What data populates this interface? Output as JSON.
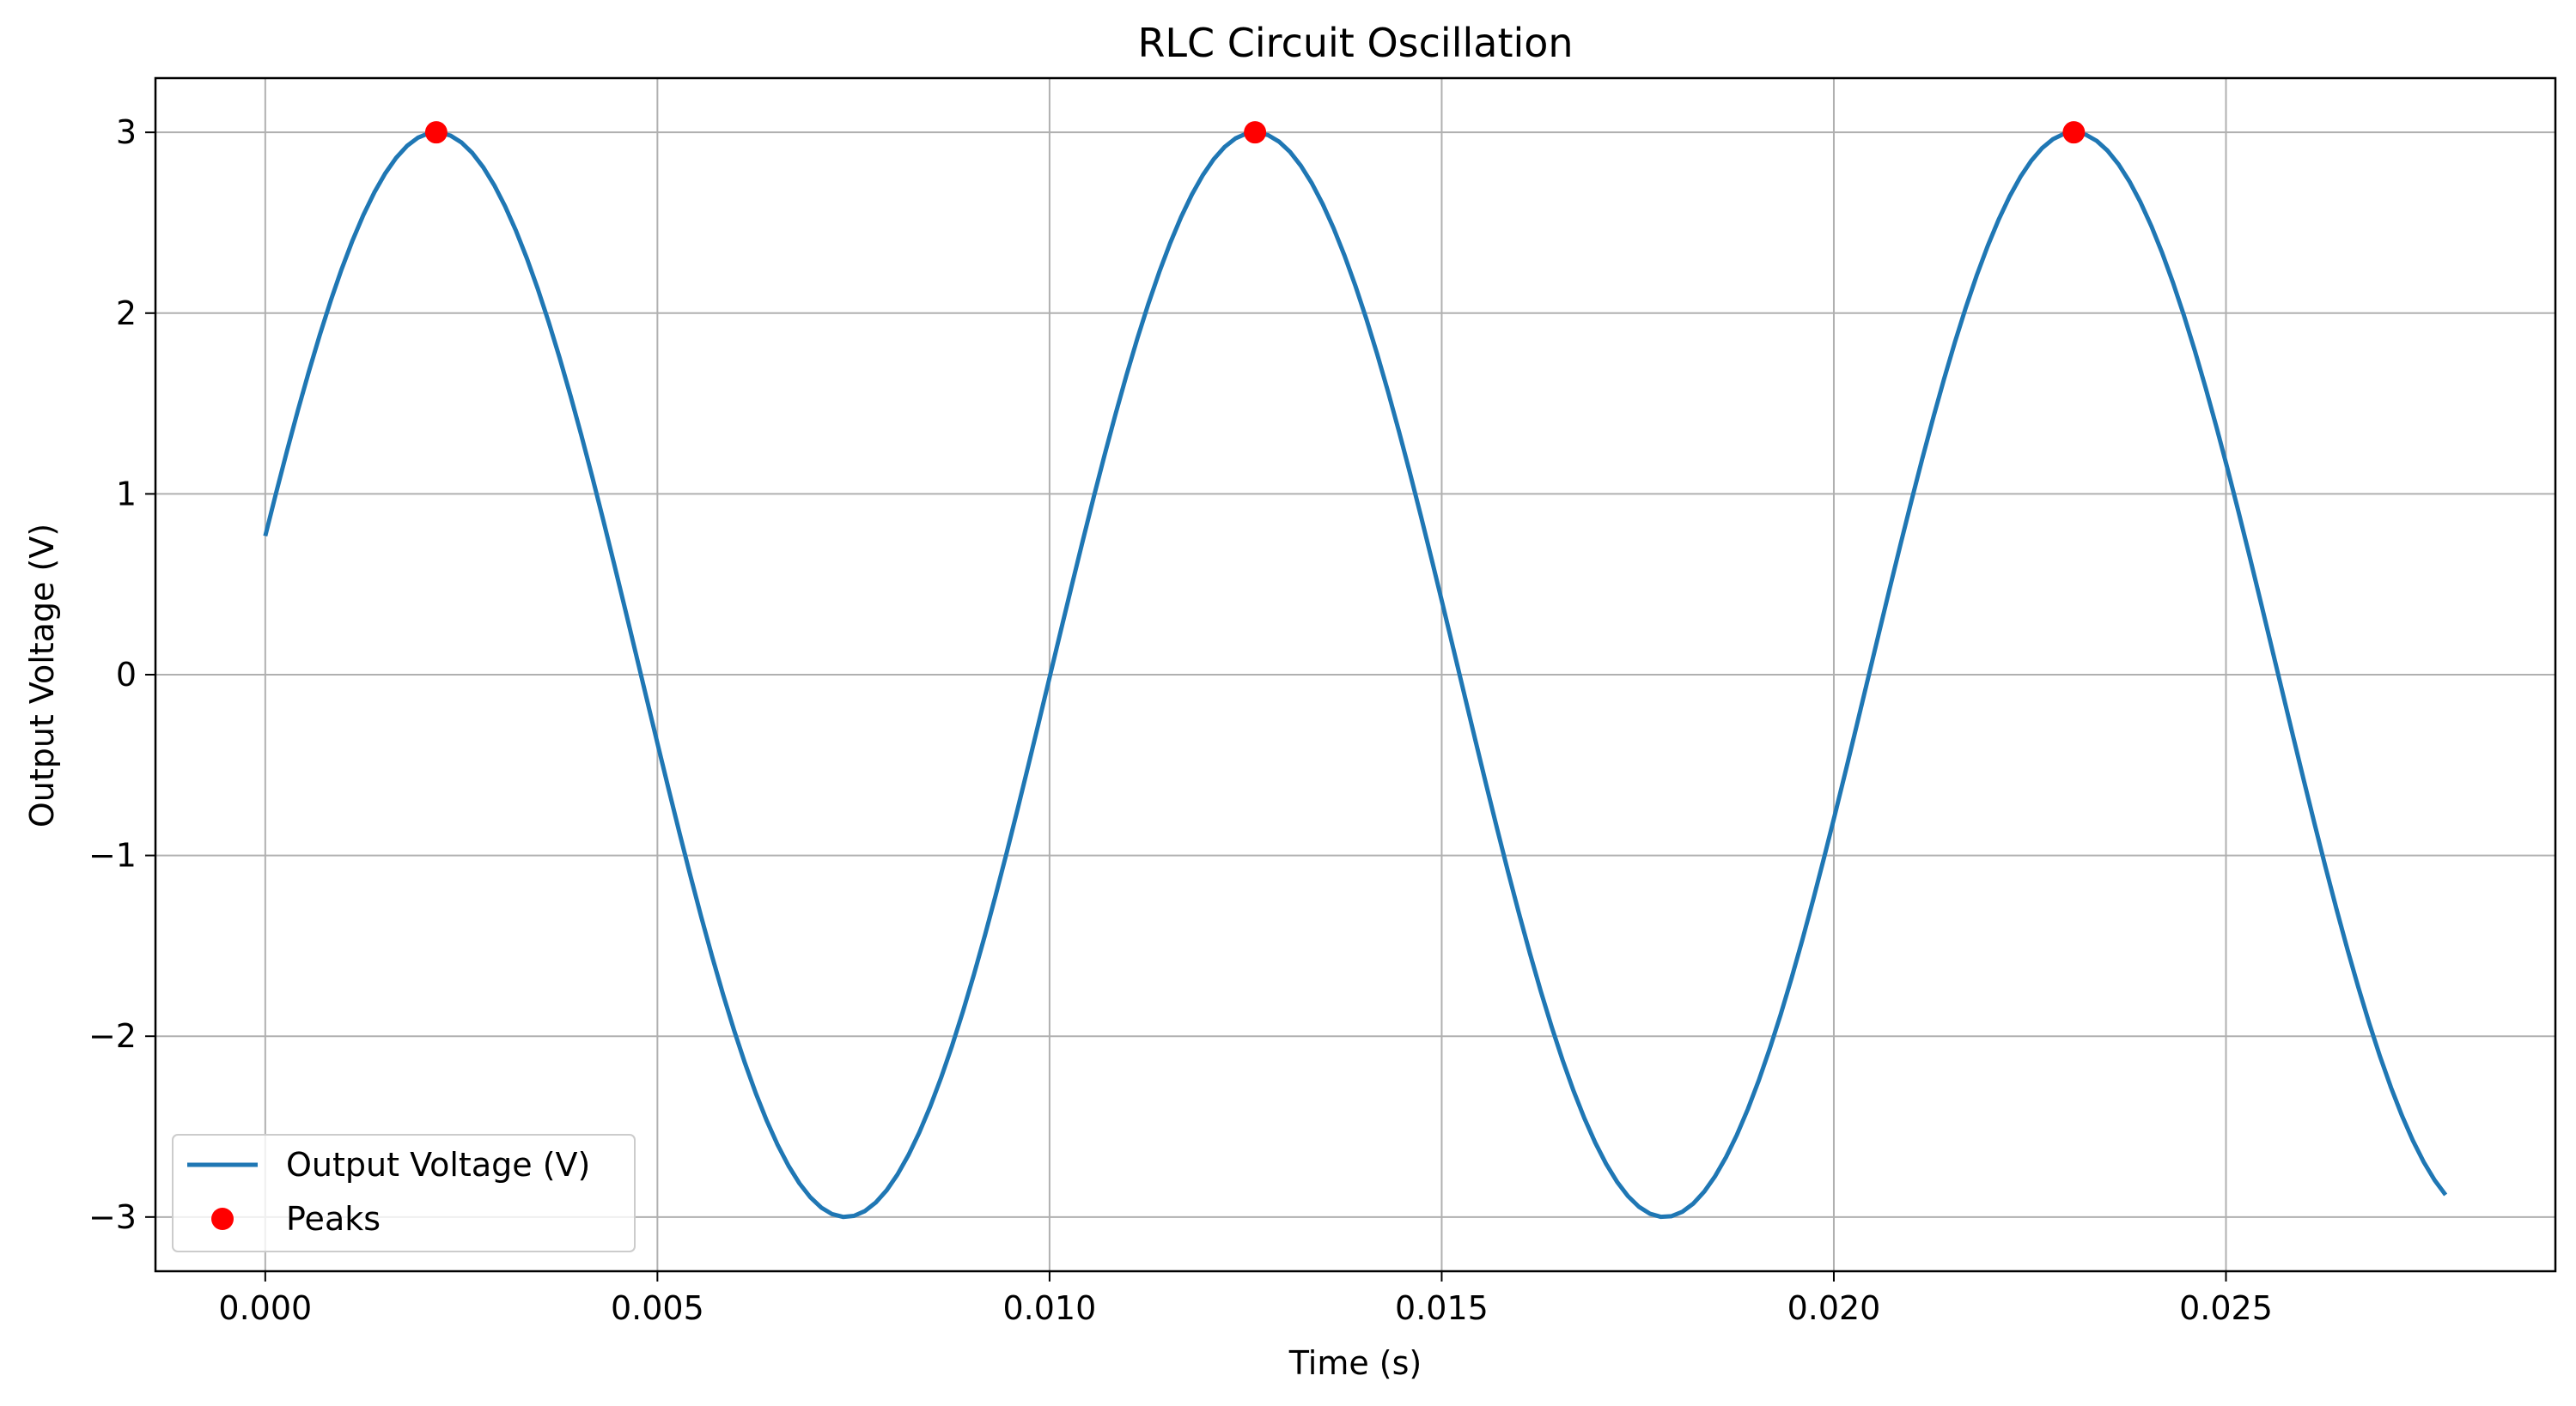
{
  "chart_data": {
    "type": "line",
    "title": "RLC Circuit Oscillation",
    "xlabel": "Time (s)",
    "ylabel": "Output Voltage (V)",
    "xlim": [
      -0.0014,
      0.0292
    ],
    "ylim": [
      -3.3,
      3.3
    ],
    "x_ticks": [
      0.0,
      0.005,
      0.01,
      0.015,
      0.02,
      0.025
    ],
    "x_tick_labels": [
      "0.000",
      "0.005",
      "0.010",
      "0.015",
      "0.020",
      "0.025"
    ],
    "y_ticks": [
      -3,
      -2,
      -1,
      0,
      1,
      2,
      3
    ],
    "y_tick_labels": [
      "−3",
      "−2",
      "−1",
      "0",
      "1",
      "2",
      "3"
    ],
    "grid": true,
    "legend_position": "lower-left",
    "series": [
      {
        "name": "Output Voltage (V)",
        "kind": "line",
        "color": "#1f77b4",
        "amplitude": 3.0,
        "frequency_hz": 95.8,
        "x_start": 0.0,
        "x_end": 0.0278,
        "points": [
          [
            0.0,
            0.72
          ],
          [
            0.001,
            2.1
          ],
          [
            0.0022,
            3.0
          ],
          [
            0.0035,
            2.2
          ],
          [
            0.005,
            -0.35
          ],
          [
            0.0063,
            -2.35
          ],
          [
            0.0074,
            -3.0
          ],
          [
            0.0085,
            -2.3
          ],
          [
            0.01,
            0.0
          ],
          [
            0.0115,
            2.35
          ],
          [
            0.0126,
            3.0
          ],
          [
            0.014,
            2.0
          ],
          [
            0.015,
            0.4
          ],
          [
            0.0165,
            -2.3
          ],
          [
            0.0178,
            -3.0
          ],
          [
            0.019,
            -2.2
          ],
          [
            0.02,
            -0.75
          ],
          [
            0.0215,
            1.8
          ],
          [
            0.023,
            3.0
          ],
          [
            0.0245,
            2.0
          ],
          [
            0.025,
            1.1
          ],
          [
            0.0265,
            -1.5
          ],
          [
            0.0278,
            -2.9
          ]
        ]
      },
      {
        "name": "Peaks",
        "kind": "scatter",
        "color": "#ff0000",
        "x": [
          0.00218,
          0.01262,
          0.02306
        ],
        "y": [
          3.0,
          3.0,
          3.0
        ]
      }
    ]
  },
  "colors": {
    "line": "#1f77b4",
    "peaks": "#ff0000",
    "grid": "#b0b0b0",
    "axes": "#000000"
  }
}
